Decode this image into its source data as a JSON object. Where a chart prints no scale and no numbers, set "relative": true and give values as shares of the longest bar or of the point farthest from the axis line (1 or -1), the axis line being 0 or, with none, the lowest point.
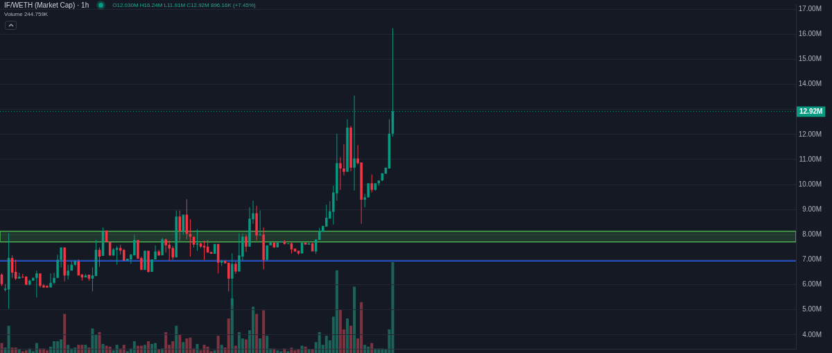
{
  "chart_data": [
    {
      "type": "candlestick",
      "title": "IF/WETH (Market Cap) · 1h",
      "subtitle": "O12.030M H16.24M L11.91M C12.92M 896.16K (+7.45%)",
      "categories": [
        null,
        null,
        null,
        null,
        null,
        null,
        null,
        null,
        null,
        null,
        null,
        null,
        null,
        null,
        null,
        null,
        null,
        null,
        null,
        null,
        null,
        null,
        null,
        null,
        null,
        null,
        null,
        null,
        null,
        null,
        null,
        null,
        null,
        null,
        null,
        null,
        null,
        null,
        null,
        null,
        null,
        null,
        null,
        null,
        null,
        null,
        null,
        null,
        null,
        null,
        null,
        null,
        null,
        null,
        null,
        null,
        null,
        null,
        null,
        null,
        null,
        null,
        null,
        null,
        null,
        null,
        null,
        null,
        null,
        null,
        null,
        null,
        null,
        null,
        null,
        null,
        null,
        null,
        null,
        null,
        null,
        null,
        null,
        null,
        null,
        null,
        null,
        null,
        null,
        null,
        null,
        null,
        null,
        null,
        null,
        null,
        null,
        null,
        null,
        null,
        null,
        null,
        null,
        null,
        null,
        null,
        null,
        null,
        null,
        null,
        null,
        null,
        null,
        null,
        null,
        null,
        null,
        null,
        null,
        null,
        null,
        null,
        null,
        null,
        null,
        null,
        null,
        null,
        null,
        null,
        null,
        null,
        null,
        null,
        null,
        null,
        null,
        null,
        null,
        null,
        null,
        null,
        null,
        null,
        null,
        null,
        null,
        null,
        null,
        null,
        null,
        null,
        null,
        null,
        null,
        null,
        null,
        null,
        null,
        null,
        null,
        null,
        null,
        null,
        null,
        null,
        null,
        null,
        null,
        null,
        null,
        null,
        null,
        null,
        null,
        null,
        null,
        null,
        null,
        null,
        null,
        null,
        null,
        null,
        null,
        null,
        null,
        null,
        null,
        null,
        null,
        null,
        null,
        null,
        null,
        null,
        null,
        null,
        null,
        null,
        null,
        null,
        null,
        null,
        null,
        null,
        null,
        null,
        null,
        null,
        null,
        null,
        null,
        null,
        null,
        null,
        null,
        null,
        null,
        null,
        null,
        null,
        null,
        null,
        null,
        null,
        null,
        null
      ],
      "ohlc": [
        [
          6.4,
          6.45,
          5.95,
          6.03
        ],
        [
          5.79,
          6.03,
          5.73,
          5.84
        ],
        [
          5.81,
          8.05,
          5.04,
          7.07
        ],
        [
          7.07,
          7.17,
          6.27,
          6.48
        ],
        [
          6.51,
          6.99,
          6.19,
          6.24
        ],
        [
          6.24,
          6.48,
          6.24,
          6.32
        ],
        [
          6.32,
          6.43,
          6.27,
          6.29
        ],
        [
          6.32,
          6.35,
          5.98,
          6.0
        ],
        [
          6.0,
          6.21,
          5.97,
          6.16
        ],
        [
          6.16,
          6.29,
          6.16,
          6.27
        ],
        [
          6.27,
          6.56,
          5.49,
          6.45
        ],
        [
          6.45,
          6.45,
          5.89,
          5.95
        ],
        [
          5.97,
          6.03,
          5.87,
          5.89
        ],
        [
          5.95,
          5.97,
          5.87,
          5.89
        ],
        [
          5.89,
          6.45,
          5.89,
          6.08
        ],
        [
          6.08,
          6.48,
          6.03,
          6.27
        ],
        [
          6.27,
          7.2,
          6.27,
          6.99
        ],
        [
          6.99,
          7.49,
          6.69,
          7.49
        ],
        [
          7.49,
          7.49,
          6.13,
          6.37
        ],
        [
          6.37,
          6.8,
          6.21,
          6.56
        ],
        [
          6.56,
          6.96,
          6.56,
          6.8
        ],
        [
          6.8,
          6.99,
          6.75,
          6.93
        ],
        [
          6.93,
          7.01,
          6.37,
          6.37
        ],
        [
          6.4,
          6.43,
          6.16,
          6.29
        ],
        [
          6.29,
          6.43,
          6.29,
          6.37
        ],
        [
          6.4,
          6.4,
          6.16,
          6.24
        ],
        [
          6.24,
          6.69,
          5.73,
          6.37
        ],
        [
          6.35,
          7.79,
          6.35,
          7.39
        ],
        [
          7.39,
          7.49,
          6.72,
          7.12
        ],
        [
          7.15,
          8.29,
          7.15,
          8.13
        ],
        [
          8.16,
          8.16,
          7.71,
          7.71
        ],
        [
          7.71,
          7.71,
          7.15,
          7.17
        ],
        [
          7.17,
          7.47,
          7.15,
          7.41
        ],
        [
          7.39,
          7.55,
          6.8,
          7.47
        ],
        [
          7.47,
          7.6,
          7.2,
          7.36
        ],
        [
          7.39,
          7.41,
          6.96,
          6.96
        ],
        [
          6.96,
          7.04,
          6.96,
          7.04
        ],
        [
          7.01,
          7.23,
          6.83,
          7.2
        ],
        [
          7.17,
          8.0,
          7.17,
          7.79
        ],
        [
          7.79,
          7.79,
          7.04,
          7.04
        ],
        [
          7.07,
          7.12,
          6.59,
          6.59
        ],
        [
          6.59,
          7.36,
          6.59,
          7.36
        ],
        [
          7.36,
          7.36,
          6.48,
          6.51
        ],
        [
          6.51,
          7.01,
          6.51,
          7.01
        ],
        [
          7.01,
          7.57,
          7.01,
          7.33
        ],
        [
          7.33,
          7.39,
          7.15,
          7.17
        ],
        [
          7.17,
          7.87,
          7.17,
          7.81
        ],
        [
          7.81,
          7.84,
          7.28,
          7.57
        ],
        [
          7.6,
          7.76,
          6.96,
          7.44
        ],
        [
          7.47,
          7.55,
          6.99,
          7.09
        ],
        [
          7.09,
          8.96,
          7.09,
          8.72
        ],
        [
          8.72,
          8.96,
          7.76,
          8.13
        ],
        [
          8.13,
          8.8,
          8.0,
          8.8
        ],
        [
          8.8,
          9.41,
          7.81,
          8.03
        ],
        [
          8.03,
          8.61,
          7.12,
          7.92
        ],
        [
          7.92,
          7.92,
          7.49,
          7.6
        ],
        [
          7.6,
          8.21,
          7.36,
          7.65
        ],
        [
          7.65,
          7.68,
          7.47,
          7.52
        ],
        [
          7.55,
          7.76,
          6.99,
          7.49
        ],
        [
          7.52,
          7.79,
          7.28,
          7.28
        ],
        [
          7.31,
          7.31,
          7.23,
          7.23
        ],
        [
          7.23,
          7.63,
          7.23,
          7.63
        ],
        [
          7.63,
          7.63,
          6.45,
          6.88
        ],
        [
          6.88,
          6.99,
          6.75,
          6.96
        ],
        [
          6.96,
          6.96,
          6.85,
          6.85
        ],
        [
          6.88,
          6.88,
          5.73,
          6.24
        ],
        [
          6.24,
          7.25,
          5.2,
          6.83
        ],
        [
          6.83,
          6.93,
          6.43,
          6.53
        ],
        [
          6.53,
          8.05,
          6.53,
          7.17
        ],
        [
          7.12,
          8.05,
          6.96,
          7.92
        ],
        [
          7.92,
          8.0,
          7.31,
          7.52
        ],
        [
          7.52,
          9.09,
          7.52,
          8.64
        ],
        [
          8.61,
          9.36,
          8.43,
          8.85
        ],
        [
          8.85,
          9.15,
          7.76,
          7.97
        ],
        [
          7.97,
          8.96,
          7.97,
          8.0
        ],
        [
          8.0,
          8.29,
          6.61,
          6.99
        ],
        [
          6.99,
          7.57,
          6.96,
          7.57
        ],
        [
          7.57,
          7.71,
          7.57,
          7.68
        ],
        [
          7.68,
          7.68,
          7.47,
          7.49
        ],
        [
          7.49,
          7.68,
          7.49,
          7.68
        ],
        [
          7.68,
          7.76,
          7.68,
          7.73
        ],
        [
          7.73,
          7.79,
          7.6,
          7.63
        ],
        [
          7.63,
          7.65,
          7.63,
          7.65
        ],
        [
          7.65,
          7.68,
          7.25,
          7.41
        ],
        [
          7.44,
          7.44,
          7.31,
          7.33
        ],
        [
          7.36,
          7.36,
          7.2,
          7.25
        ],
        [
          7.25,
          7.71,
          7.25,
          7.68
        ],
        [
          7.68,
          7.68,
          7.6,
          7.6
        ],
        [
          7.6,
          7.68,
          7.6,
          7.65
        ],
        [
          7.65,
          7.68,
          7.33,
          7.33
        ],
        [
          7.33,
          7.81,
          7.23,
          7.81
        ],
        [
          7.79,
          8.27,
          7.79,
          8.13
        ],
        [
          8.11,
          8.35,
          8.11,
          8.35
        ],
        [
          8.32,
          9.2,
          8.32,
          8.67
        ],
        [
          8.64,
          9.33,
          8.64,
          8.93
        ],
        [
          8.91,
          9.95,
          8.4,
          9.68
        ],
        [
          9.65,
          12.03,
          9.36,
          10.85
        ],
        [
          10.85,
          11.09,
          9.79,
          10.64
        ],
        [
          10.64,
          11.6,
          10.37,
          10.51
        ],
        [
          10.51,
          12.61,
          10.51,
          12.27
        ],
        [
          12.27,
          12.35,
          10.53,
          10.67
        ],
        [
          10.67,
          13.55,
          9.76,
          11.04
        ],
        [
          11.04,
          11.57,
          10.8,
          10.85
        ],
        [
          10.88,
          10.88,
          8.43,
          9.39
        ],
        [
          9.39,
          9.63,
          9.09,
          9.49
        ],
        [
          9.49,
          10.05,
          9.47,
          10.05
        ],
        [
          10.05,
          10.4,
          9.68,
          9.79
        ],
        [
          9.79,
          10.05,
          9.76,
          10.05
        ],
        [
          10.05,
          10.16,
          9.95,
          10.16
        ],
        [
          10.16,
          10.45,
          10.13,
          10.45
        ],
        [
          10.43,
          10.67,
          10.43,
          10.67
        ],
        [
          10.64,
          12.61,
          10.64,
          12.03
        ],
        [
          12.03,
          16.24,
          11.91,
          12.92
        ],
        null,
        null,
        null,
        null,
        null,
        null,
        null,
        null,
        null,
        null,
        null,
        null,
        null,
        null,
        null,
        null,
        null,
        null,
        null,
        null,
        null,
        null,
        null,
        null,
        null,
        null,
        null,
        null,
        null,
        null,
        null,
        null,
        null,
        null,
        null,
        null,
        null,
        null,
        null,
        null,
        null,
        null,
        null,
        null,
        null,
        null,
        null,
        null,
        null,
        null,
        null,
        null,
        null,
        null,
        null,
        null,
        null,
        null,
        null,
        null,
        null,
        null,
        null,
        null,
        null,
        null,
        null,
        null,
        null,
        null,
        null,
        null,
        null,
        null,
        null,
        null,
        null,
        null,
        null,
        null,
        null,
        null,
        null,
        null,
        null,
        null,
        null,
        null,
        null,
        null,
        null,
        null,
        null,
        null,
        null,
        null,
        null,
        null,
        null,
        null,
        null,
        null,
        null,
        null,
        null,
        null,
        null,
        null,
        null,
        null,
        null,
        null,
        null,
        null,
        null
      ],
      "colors": [
        "#f23645",
        "#089981",
        "#089981",
        "#f23645",
        "#f23645",
        "#089981",
        "#f23645",
        "#f23645",
        "#089981",
        "#089981",
        "#089981",
        "#f23645",
        "#f23645",
        "#f23645",
        "#089981",
        "#089981",
        "#089981",
        "#089981",
        "#f23645",
        "#089981",
        "#089981",
        "#089981",
        "#f23645",
        "#f23645",
        "#089981",
        "#f23645",
        "#089981",
        "#089981",
        "#f23645",
        "#089981",
        "#f23645",
        "#f23645",
        "#089981",
        "#089981",
        "#f23645",
        "#f23645",
        "#089981",
        "#089981",
        "#089981",
        "#f23645",
        "#f23645",
        "#089981",
        "#f23645",
        "#089981",
        "#089981",
        "#f23645",
        "#089981",
        "#f23645",
        "#f23645",
        "#f23645",
        "#089981",
        "#f23645",
        "#089981",
        "#f23645",
        "#f23645",
        "#f23645",
        "#089981",
        "#f23645",
        "#f23645",
        "#f23645",
        "#f23645",
        "#089981",
        "#f23645",
        "#089981",
        "#f23645",
        "#f23645",
        "#089981",
        "#f23645",
        "#089981",
        "#089981",
        "#f23645",
        "#089981",
        "#089981",
        "#f23645",
        "#089981",
        "#f23645",
        "#089981",
        "#089981",
        "#f23645",
        "#089981",
        "#089981",
        "#f23645",
        "#089981",
        "#f23645",
        "#f23645",
        "#f23645",
        "#089981",
        "#f23645",
        "#089981",
        "#f23645",
        "#089981",
        "#089981",
        "#089981",
        "#089981",
        "#089981",
        "#089981",
        "#089981",
        "#f23645",
        "#f23645",
        "#089981",
        "#f23645",
        "#089981",
        "#f23645",
        "#f23645",
        "#089981",
        "#089981",
        "#f23645",
        "#089981",
        "#089981",
        "#089981",
        "#089981",
        "#089981",
        "#089981",
        null,
        null,
        null,
        null,
        null,
        null,
        null,
        null,
        null,
        null,
        null,
        null,
        null,
        null,
        null,
        null,
        null,
        null,
        null,
        null,
        null,
        null,
        null,
        null,
        null,
        null,
        null,
        null,
        null,
        null,
        null,
        null,
        null,
        null,
        null,
        null,
        null,
        null,
        null,
        null,
        null,
        null,
        null,
        null,
        null,
        null,
        null,
        null,
        null,
        null,
        null,
        null,
        null,
        null,
        null,
        null,
        null,
        null,
        null,
        null,
        null,
        null,
        null,
        null,
        null,
        null,
        null,
        null,
        null,
        null,
        null,
        null,
        null,
        null,
        null,
        null,
        null,
        null,
        null,
        null,
        null,
        null,
        null,
        null,
        null,
        null,
        null,
        null,
        null,
        null,
        null,
        null,
        null,
        null,
        null,
        null,
        null,
        null,
        null,
        null,
        null,
        null,
        null,
        null,
        null,
        null,
        null,
        null,
        null,
        null,
        null,
        null,
        null,
        null,
        null
      ],
      "ylim": [
        3.44,
        17.2
      ],
      "yticks": [
        {
          "value": 4,
          "label": "4.00M"
        },
        {
          "value": 5,
          "label": "5.00M"
        },
        {
          "value": 6,
          "label": "6.00M"
        },
        {
          "value": 7,
          "label": "7.00M"
        },
        {
          "value": 8,
          "label": "8.00M"
        },
        {
          "value": 9,
          "label": "9.00M"
        },
        {
          "value": 10,
          "label": "10.00M"
        },
        {
          "value": 11,
          "label": "11.00M"
        },
        {
          "value": 12,
          "label": "12.00M"
        },
        {
          "value": 13,
          "label": null
        },
        {
          "value": 14,
          "label": "14.00M"
        },
        {
          "value": 15,
          "label": "15.00M"
        },
        {
          "value": 16,
          "label": "16.00M"
        },
        {
          "value": 17,
          "label": "17.00M"
        }
      ],
      "ref_lines": [
        {
          "axis": "y",
          "value": 6.95,
          "color": "#2962ff",
          "line_style": "solid"
        },
        {
          "axis": "y",
          "value": 12.92,
          "label": "12.92M",
          "color": "#089981",
          "line_style": "dotted"
        }
      ],
      "bands": [
        {
          "axis": "y",
          "from": 7.71,
          "to": 8.13,
          "color": "#4caf50"
        }
      ],
      "grid": "y",
      "tick_labels": "y"
    },
    {
      "type": "bar",
      "relative": true,
      "annotations": [
        "Volume 244.759K"
      ],
      "categories": [
        null,
        null,
        null,
        null,
        null,
        null,
        null,
        null,
        null,
        null,
        null,
        null,
        null,
        null,
        null,
        null,
        null,
        null,
        null,
        null,
        null,
        null,
        null,
        null,
        null,
        null,
        null,
        null,
        null,
        null,
        null,
        null,
        null,
        null,
        null,
        null,
        null,
        null,
        null,
        null,
        null,
        null,
        null,
        null,
        null,
        null,
        null,
        null,
        null,
        null,
        null,
        null,
        null,
        null,
        null,
        null,
        null,
        null,
        null,
        null,
        null,
        null,
        null,
        null,
        null,
        null,
        null,
        null,
        null,
        null,
        null,
        null,
        null,
        null,
        null,
        null,
        null,
        null,
        null,
        null,
        null,
        null,
        null,
        null,
        null,
        null,
        null,
        null,
        null,
        null,
        null,
        null,
        null,
        null,
        null,
        null,
        null,
        null,
        null,
        null,
        null,
        null,
        null,
        null,
        null,
        null,
        null,
        null,
        null,
        null,
        null,
        null,
        null,
        null,
        null,
        null,
        null,
        null,
        null,
        null,
        null,
        null,
        null,
        null,
        null,
        null,
        null,
        null,
        null,
        null,
        null,
        null,
        null,
        null,
        null,
        null,
        null,
        null,
        null,
        null,
        null,
        null,
        null,
        null,
        null,
        null,
        null,
        null,
        null,
        null,
        null,
        null,
        null,
        null,
        null,
        null,
        null,
        null,
        null,
        null,
        null,
        null,
        null,
        null,
        null,
        null,
        null,
        null,
        null,
        null,
        null,
        null,
        null,
        null,
        null,
        null,
        null,
        null,
        null,
        null,
        null,
        null,
        null,
        null,
        null,
        null,
        null,
        null,
        null,
        null,
        null,
        null,
        null,
        null,
        null,
        null,
        null,
        null,
        null,
        null,
        null,
        null,
        null,
        null,
        null,
        null,
        null,
        null,
        null,
        null,
        null,
        null,
        null,
        null,
        null,
        null,
        null,
        null,
        null,
        null,
        null,
        null,
        null,
        null,
        null,
        null,
        null,
        null
      ],
      "values": [
        0.11,
        0.06,
        0.3,
        0.06,
        0.06,
        0.04,
        0.02,
        0.03,
        0.05,
        0.02,
        0.11,
        0.05,
        0.05,
        0.03,
        0.07,
        0.13,
        0.13,
        0.15,
        0.43,
        0.09,
        0.05,
        0.06,
        0.09,
        0.09,
        0.09,
        0.06,
        0.27,
        0.2,
        0.23,
        0.1,
        0.08,
        0.07,
        0.03,
        0.09,
        0.05,
        0.09,
        0.02,
        0.05,
        0.13,
        0.08,
        0.08,
        0.09,
        0.13,
        0.1,
        0.11,
        0.04,
        0.05,
        0.23,
        0.09,
        0.13,
        0.3,
        0.2,
        0.12,
        0.16,
        0.17,
        0.05,
        0.1,
        0.03,
        0.09,
        0.07,
        0.02,
        0.03,
        0.19,
        0.09,
        0.06,
        0.38,
        0.6,
        0.08,
        0.23,
        0.16,
        0.15,
        0.25,
        0.51,
        0.43,
        0.16,
        0.47,
        0.19,
        0.05,
        0.05,
        0.03,
        0.02,
        0.05,
        0.02,
        0.06,
        0.03,
        0.04,
        0.08,
        0.07,
        0.04,
        0.04,
        0.12,
        0.23,
        0.09,
        0.19,
        0.14,
        0.4,
        0.91,
        0.48,
        0.26,
        0.38,
        0.3,
        0.73,
        0.16,
        0.56,
        0.09,
        0.07,
        0.11,
        0.05,
        0.05,
        0.05,
        0.04,
        0.26,
        1,
        null,
        null,
        null,
        null,
        null,
        null,
        null,
        null,
        null,
        null,
        null,
        null,
        null,
        null,
        null,
        null,
        null,
        null,
        null,
        null,
        null,
        null,
        null,
        null,
        null,
        null,
        null,
        null,
        null,
        null,
        null,
        null,
        null,
        null,
        null,
        null,
        null,
        null,
        null,
        null,
        null,
        null,
        null,
        null,
        null,
        null,
        null,
        null,
        null,
        null,
        null,
        null,
        null,
        null,
        null,
        null,
        null,
        null,
        null,
        null,
        null,
        null,
        null,
        null,
        null,
        null,
        null,
        null,
        null,
        null,
        null,
        null,
        null,
        null,
        null,
        null,
        null,
        null,
        null,
        null,
        null,
        null,
        null,
        null,
        null,
        null,
        null,
        null,
        null,
        null,
        null,
        null,
        null,
        null,
        null,
        null,
        null,
        null,
        null,
        null,
        null,
        null,
        null,
        null,
        null,
        null,
        null,
        null,
        null,
        null,
        null,
        null,
        null,
        null,
        null
      ],
      "colors": [
        "#7c3440",
        "#1d6259",
        "#1d6259",
        "#7c3440",
        "#7c3440",
        "#1d6259",
        "#7c3440",
        "#7c3440",
        "#1d6259",
        "#1d6259",
        "#1d6259",
        "#7c3440",
        "#7c3440",
        "#7c3440",
        "#1d6259",
        "#1d6259",
        "#1d6259",
        "#1d6259",
        "#7c3440",
        "#1d6259",
        "#1d6259",
        "#1d6259",
        "#7c3440",
        "#7c3440",
        "#1d6259",
        "#7c3440",
        "#1d6259",
        "#1d6259",
        "#7c3440",
        "#1d6259",
        "#7c3440",
        "#7c3440",
        "#1d6259",
        "#1d6259",
        "#7c3440",
        "#7c3440",
        "#1d6259",
        "#1d6259",
        "#1d6259",
        "#7c3440",
        "#7c3440",
        "#1d6259",
        "#7c3440",
        "#1d6259",
        "#1d6259",
        "#7c3440",
        "#1d6259",
        "#7c3440",
        "#7c3440",
        "#7c3440",
        "#1d6259",
        "#7c3440",
        "#1d6259",
        "#7c3440",
        "#7c3440",
        "#7c3440",
        "#1d6259",
        "#7c3440",
        "#7c3440",
        "#7c3440",
        "#7c3440",
        "#1d6259",
        "#7c3440",
        "#1d6259",
        "#7c3440",
        "#7c3440",
        "#1d6259",
        "#7c3440",
        "#1d6259",
        "#1d6259",
        "#7c3440",
        "#1d6259",
        "#1d6259",
        "#7c3440",
        "#1d6259",
        "#7c3440",
        "#1d6259",
        "#1d6259",
        "#7c3440",
        "#1d6259",
        "#1d6259",
        "#7c3440",
        "#1d6259",
        "#7c3440",
        "#7c3440",
        "#7c3440",
        "#1d6259",
        "#7c3440",
        "#1d6259",
        "#7c3440",
        "#1d6259",
        "#1d6259",
        "#1d6259",
        "#1d6259",
        "#1d6259",
        "#1d6259",
        "#1d6259",
        "#7c3440",
        "#7c3440",
        "#1d6259",
        "#7c3440",
        "#1d6259",
        "#7c3440",
        "#7c3440",
        "#1d6259",
        "#1d6259",
        "#7c3440",
        "#1d6259",
        "#1d6259",
        "#1d6259",
        "#1d6259",
        "#1d6259",
        "#1d6259",
        null,
        null,
        null,
        null,
        null,
        null,
        null,
        null,
        null,
        null,
        null,
        null,
        null,
        null,
        null,
        null,
        null,
        null,
        null,
        null,
        null,
        null,
        null,
        null,
        null,
        null,
        null,
        null,
        null,
        null,
        null,
        null,
        null,
        null,
        null,
        null,
        null,
        null,
        null,
        null,
        null,
        null,
        null,
        null,
        null,
        null,
        null,
        null,
        null,
        null,
        null,
        null,
        null,
        null,
        null,
        null,
        null,
        null,
        null,
        null,
        null,
        null,
        null,
        null,
        null,
        null,
        null,
        null,
        null,
        null,
        null,
        null,
        null,
        null,
        null,
        null,
        null,
        null,
        null,
        null,
        null,
        null,
        null,
        null,
        null,
        null,
        null,
        null,
        null,
        null,
        null,
        null,
        null,
        null,
        null,
        null,
        null,
        null,
        null,
        null,
        null,
        null,
        null,
        null,
        null,
        null,
        null,
        null,
        null,
        null,
        null,
        null,
        null,
        null,
        null
      ],
      "tick_labels": false
    }
  ]
}
